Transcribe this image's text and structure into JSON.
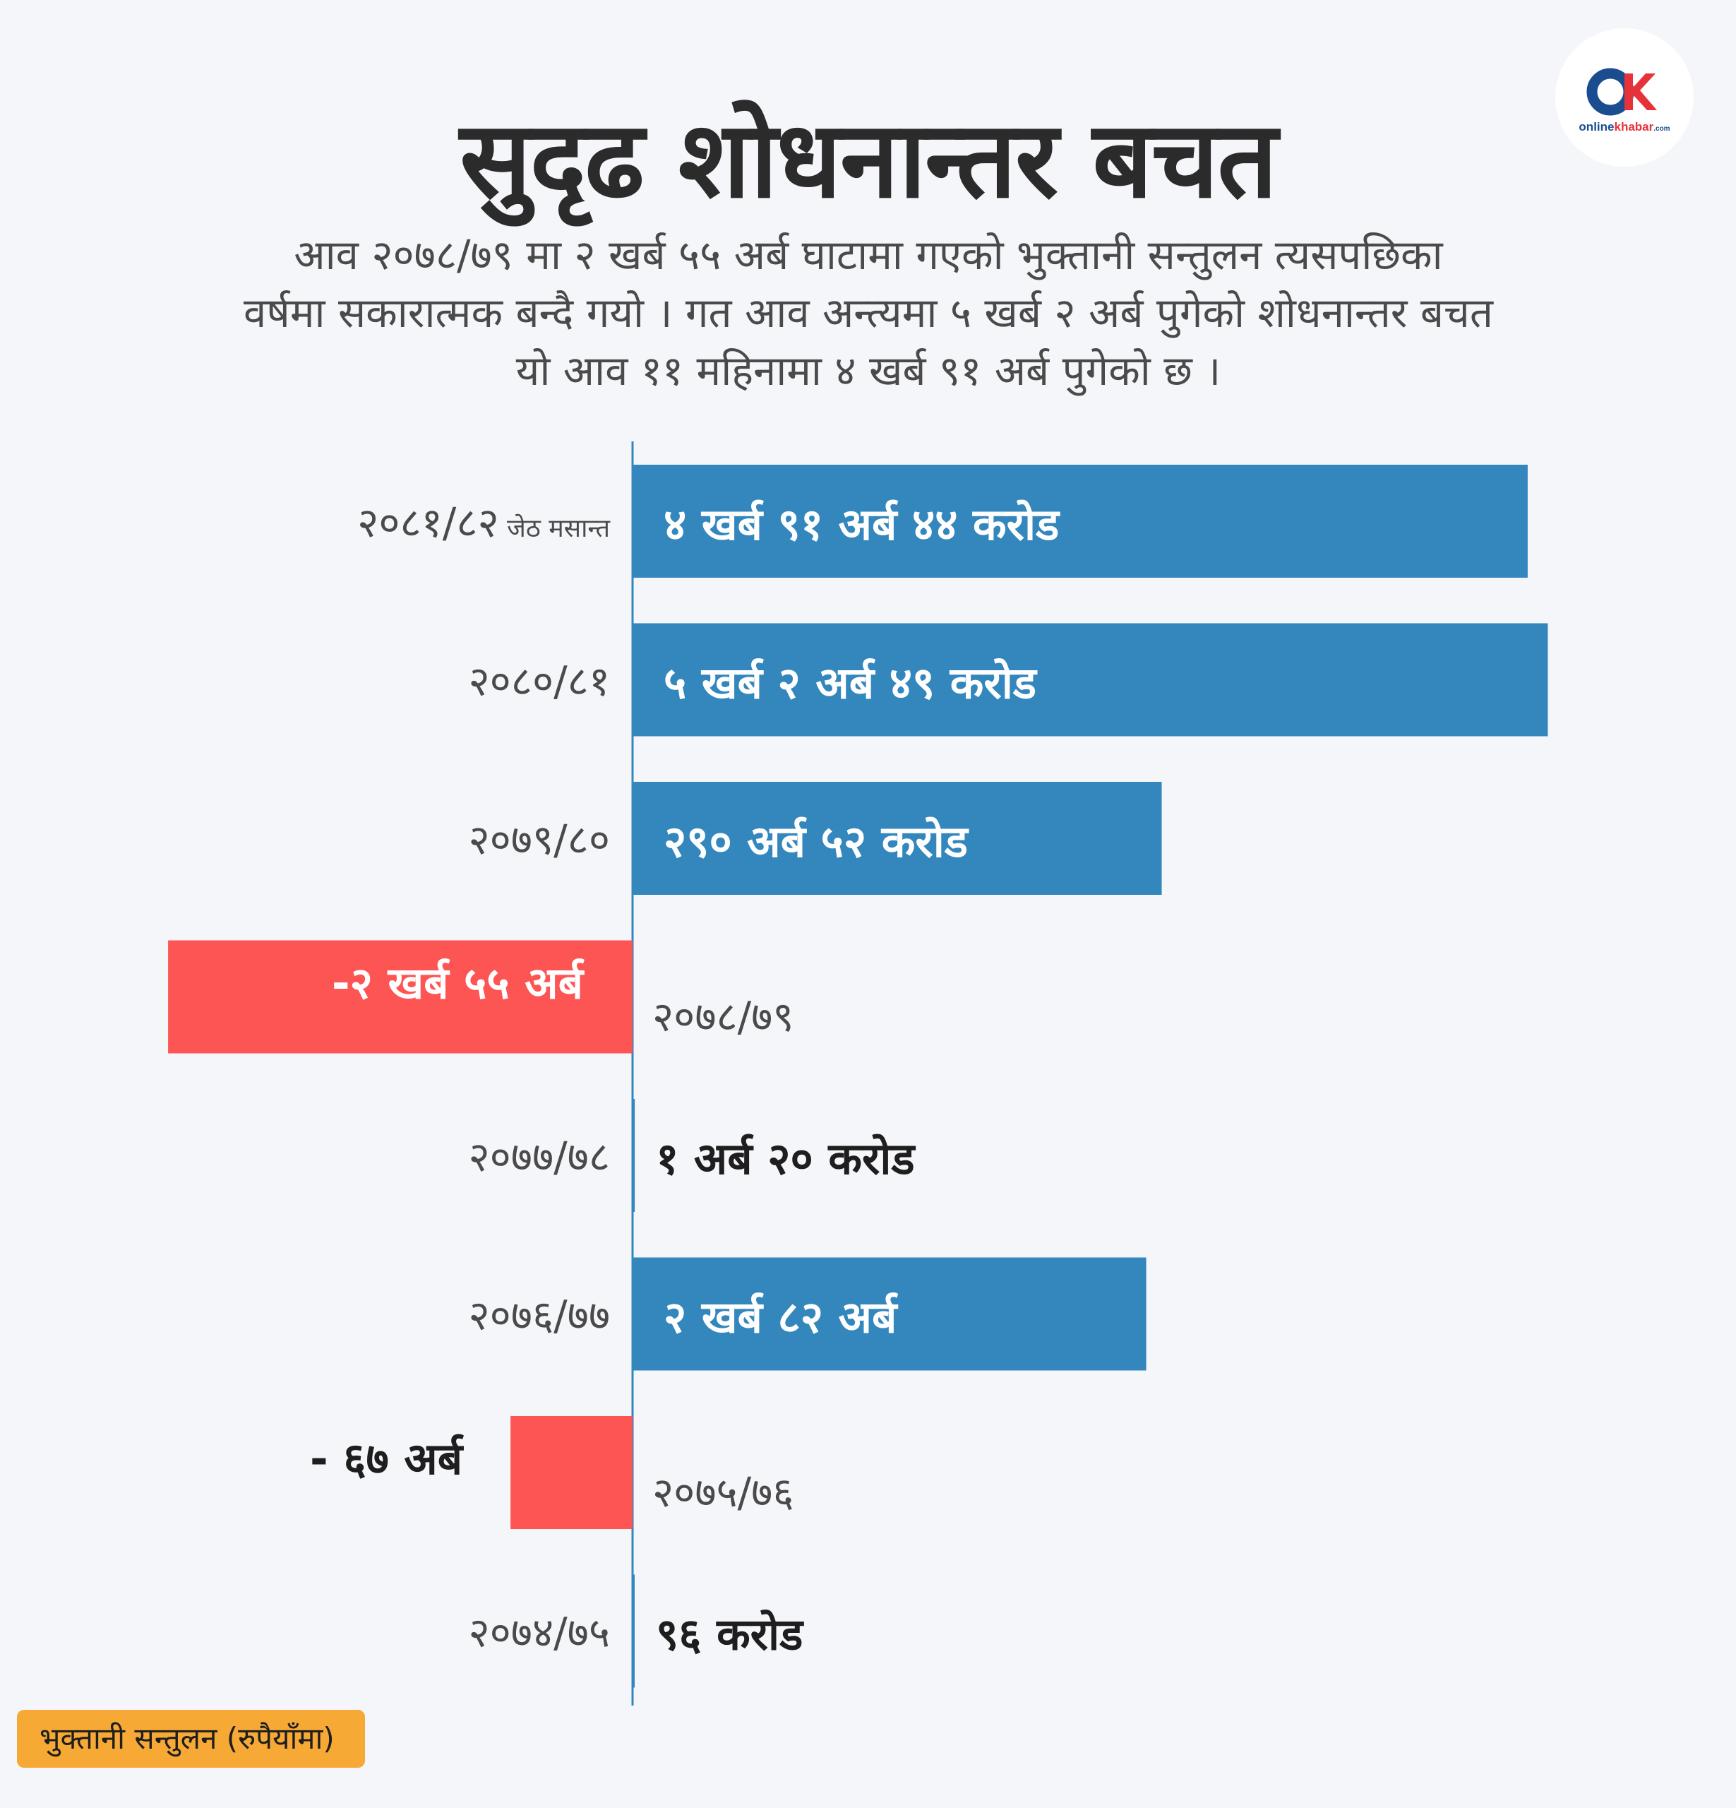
{
  "title": "सुदृढ शोधनान्तर बचत",
  "subtitle_lines": [
    "आव २०७८/७९ मा २ खर्ब ५५ अर्ब घाटामा गएको भुक्तानी सन्तुलन त्यसपछिका",
    "वर्षमा सकारात्मक बन्दै गयो । गत आव अन्त्यमा ५ खर्ब २ अर्ब पुगेको शोधनान्तर बचत",
    "यो आव ११ महिनामा ४ खर्ब ९१ अर्ब पुगेको छ ।"
  ],
  "logo": {
    "brand_part1": "online",
    "brand_part2": "khabar",
    "suffix": ".com"
  },
  "footer_note": "भुक्तानी सन्तुलन (रुपैयाँमा)",
  "colors": {
    "positive": "#3387bd",
    "negative": "#fd5454",
    "axis": "#3387bd",
    "footer": "#f7a936"
  },
  "chart_data": {
    "type": "bar",
    "orientation": "horizontal",
    "unit": "रुपैयाँ (अर्ब)",
    "categories": [
      "२०८१/८२ जेठ मसान्त",
      "२०८०/८१",
      "२०७९/८०",
      "२०७८/७९",
      "२०७७/७८",
      "२०७६/७७",
      "२०७५/७६",
      "२०७४/७५"
    ],
    "category_main": [
      "२०८१/८२",
      "२०८०/८१",
      "२०७९/८०",
      "२०७८/७९",
      "२०७७/७८",
      "२०७६/७७",
      "२०७५/७६",
      "२०७४/७५"
    ],
    "category_sub": [
      "जेठ मसान्त",
      "",
      "",
      "",
      "",
      "",
      "",
      ""
    ],
    "values": [
      491.44,
      502.49,
      290.52,
      -255,
      1.2,
      282,
      -67,
      0.96
    ],
    "value_labels": [
      "४ खर्ब ९१ अर्ब ४४ करोड",
      "५ खर्ब २ अर्ब ४९ करोड",
      "२९० अर्ब ५२ करोड",
      "-२ खर्ब ५५ अर्ब",
      "१ अर्ब २० करोड",
      "२ खर्ब ८२ अर्ब",
      "- ६७ अर्ब",
      "९६ करोड"
    ],
    "xlim": [
      -255,
      502.49
    ]
  }
}
